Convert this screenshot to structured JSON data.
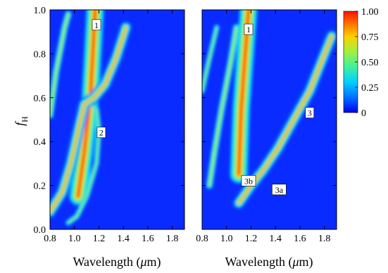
{
  "chart_data": [
    {
      "type": "heatmap",
      "panel": "left",
      "xlabel_prefix": "Wavelength (",
      "xlabel_unit": "μ",
      "xlabel_suffix": "m)",
      "ylabel": "f",
      "ylabel_sub": "H",
      "xlim": [
        0.8,
        1.9
      ],
      "ylim": [
        0.0,
        1.0
      ],
      "xticks": [
        "0.8",
        "1.0",
        "1.2",
        "1.4",
        "1.6",
        "1.8"
      ],
      "yticks": [
        "0.0",
        "0.2",
        "0.4",
        "0.6",
        "0.8",
        "1.0"
      ],
      "bands": [
        {
          "label": "1",
          "label_at": [
            1.18,
            0.93
          ],
          "width": 0.045,
          "peak": 1.0,
          "points": [
            [
              1.03,
              0.15
            ],
            [
              1.08,
              0.35
            ],
            [
              1.11,
              0.5
            ],
            [
              1.13,
              0.6
            ],
            [
              1.14,
              0.7
            ],
            [
              1.15,
              0.8
            ],
            [
              1.16,
              0.9
            ],
            [
              1.17,
              1.0
            ]
          ]
        },
        {
          "label": "2",
          "label_at": [
            1.22,
            0.44
          ],
          "width": 0.03,
          "peak": 0.8,
          "points": [
            [
              0.8,
              0.08
            ],
            [
              0.9,
              0.17
            ],
            [
              0.97,
              0.3
            ],
            [
              1.03,
              0.45
            ],
            [
              1.08,
              0.57
            ],
            [
              1.16,
              0.6
            ],
            [
              1.25,
              0.66
            ],
            [
              1.34,
              0.78
            ],
            [
              1.42,
              0.92
            ]
          ]
        },
        {
          "label": "",
          "width": 0.025,
          "peak": 0.6,
          "points": [
            [
              0.8,
              0.52
            ],
            [
              0.85,
              0.72
            ],
            [
              0.92,
              0.92
            ],
            [
              0.95,
              0.98
            ]
          ]
        },
        {
          "label": "",
          "width": 0.02,
          "peak": 0.55,
          "points": [
            [
              0.95,
              0.03
            ],
            [
              1.02,
              0.06
            ],
            [
              1.1,
              0.15
            ],
            [
              1.18,
              0.3
            ],
            [
              1.2,
              0.45
            ],
            [
              1.18,
              0.55
            ]
          ]
        }
      ]
    },
    {
      "type": "heatmap",
      "panel": "right",
      "xlabel_prefix": "Wavelength (",
      "xlabel_unit": "μ",
      "xlabel_suffix": "m)",
      "xlim": [
        0.8,
        1.9
      ],
      "ylim": [
        0.0,
        1.0
      ],
      "xticks": [
        "0.8",
        "1.0",
        "1.2",
        "1.4",
        "1.6",
        "1.8"
      ],
      "bands": [
        {
          "label": "1",
          "label_at": [
            1.18,
            0.91
          ],
          "width": 0.045,
          "peak": 1.0,
          "points": [
            [
              1.1,
              0.25
            ],
            [
              1.11,
              0.4
            ],
            [
              1.12,
              0.55
            ],
            [
              1.14,
              0.7
            ],
            [
              1.16,
              0.85
            ],
            [
              1.18,
              1.0
            ]
          ]
        },
        {
          "label": "3",
          "label_at": [
            1.68,
            0.53
          ],
          "width": 0.03,
          "peak": 0.85,
          "points": [
            [
              1.1,
              0.12
            ],
            [
              1.2,
              0.2
            ],
            [
              1.3,
              0.27
            ],
            [
              1.42,
              0.37
            ],
            [
              1.55,
              0.5
            ],
            [
              1.68,
              0.63
            ],
            [
              1.78,
              0.77
            ],
            [
              1.86,
              0.88
            ]
          ]
        },
        {
          "label": "",
          "width": 0.025,
          "peak": 0.6,
          "points": [
            [
              0.86,
              0.2
            ],
            [
              0.9,
              0.35
            ],
            [
              0.96,
              0.55
            ],
            [
              1.03,
              0.75
            ],
            [
              1.08,
              0.92
            ]
          ]
        },
        {
          "label": "",
          "width": 0.02,
          "peak": 0.55,
          "points": [
            [
              0.8,
              0.63
            ],
            [
              0.86,
              0.78
            ],
            [
              0.92,
              0.92
            ]
          ]
        }
      ],
      "annotations": [
        {
          "label": "3b",
          "at": [
            1.18,
            0.22
          ]
        },
        {
          "label": "3a",
          "at": [
            1.43,
            0.18
          ]
        }
      ]
    }
  ],
  "colorbar": {
    "ticks": [
      "1.00",
      "0.75",
      "0.50",
      "0.25",
      "0"
    ],
    "values": [
      1.0,
      0.75,
      0.5,
      0.25,
      0.0
    ]
  },
  "colors": {
    "scale": [
      "#0000ee",
      "#0070ff",
      "#00d0ff",
      "#40f0a0",
      "#a0f040",
      "#ffd000",
      "#ff7000",
      "#ff1000"
    ],
    "background": "#0a2bff"
  }
}
